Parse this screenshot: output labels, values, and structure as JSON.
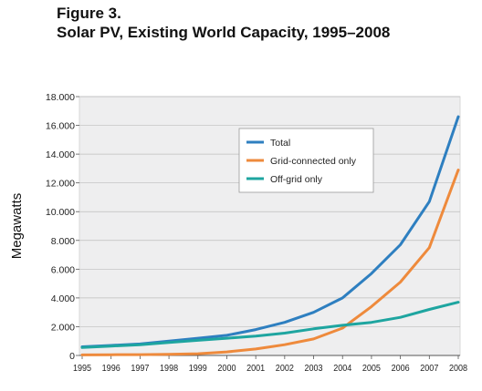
{
  "figure": {
    "number": "Figure 3.",
    "title": "Solar PV, Existing World Capacity, 1995–2008"
  },
  "chart_data": {
    "type": "line",
    "title": "Solar PV, Existing World Capacity, 1995–2008",
    "xlabel": "",
    "ylabel": "Megawatts",
    "x": [
      1995,
      1996,
      1997,
      1998,
      1999,
      2000,
      2001,
      2002,
      2003,
      2004,
      2005,
      2006,
      2007,
      2008
    ],
    "x_tick_labels": [
      "1995",
      "1996",
      "1997",
      "1998",
      "1999",
      "2000",
      "2001",
      "2002",
      "2003",
      "2004",
      "2005",
      "2006",
      "2007",
      "2008"
    ],
    "y_tick_labels": [
      "0",
      "2.000",
      "4.000",
      "6.000",
      "8.000",
      "10.000",
      "12.000",
      "14.000",
      "16.000",
      "18.000"
    ],
    "y_ticks": [
      0,
      2000,
      4000,
      6000,
      8000,
      10000,
      12000,
      14000,
      16000,
      18000
    ],
    "ylim": [
      0,
      18000
    ],
    "grid": "horizontal",
    "legend_position": "top-center",
    "series": [
      {
        "name": "Total",
        "color": "#2e7fc0",
        "values": [
          600,
          700,
          800,
          1000,
          1200,
          1400,
          1800,
          2300,
          3000,
          4000,
          5700,
          7700,
          10700,
          16600
        ]
      },
      {
        "name": "Grid-connected only",
        "color": "#ee8a3c",
        "values": [
          40,
          50,
          60,
          80,
          120,
          250,
          450,
          750,
          1150,
          1900,
          3400,
          5100,
          7500,
          12900
        ]
      },
      {
        "name": "Off-grid only",
        "color": "#1ea5a0",
        "values": [
          550,
          650,
          750,
          900,
          1050,
          1200,
          1350,
          1550,
          1850,
          2100,
          2300,
          2650,
          3200,
          3700
        ]
      }
    ]
  }
}
